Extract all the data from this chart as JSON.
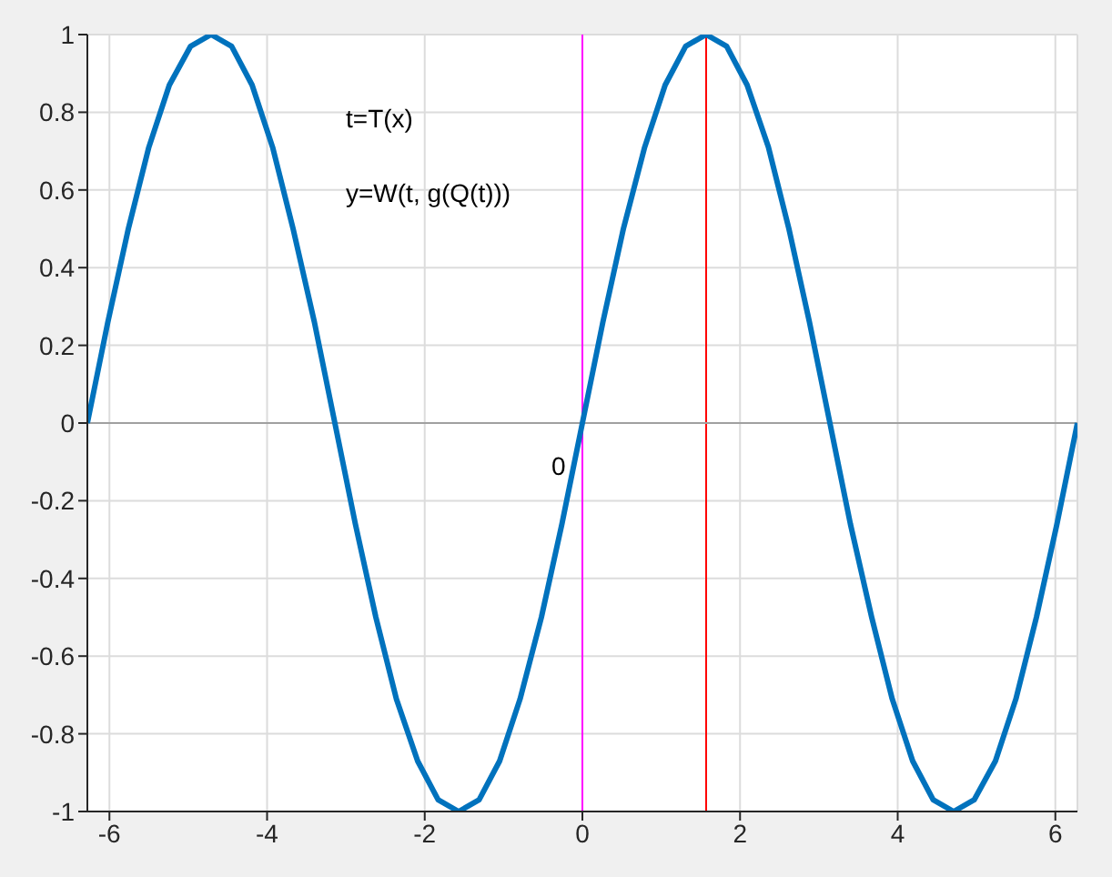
{
  "chart_data": {
    "type": "line",
    "x": [
      -6.28,
      -6.02,
      -5.76,
      -5.5,
      -5.24,
      -4.97,
      -4.71,
      -4.45,
      -4.19,
      -3.93,
      -3.67,
      -3.4,
      -3.14,
      -2.88,
      -2.62,
      -2.36,
      -2.09,
      -1.83,
      -1.57,
      -1.31,
      -1.05,
      -0.79,
      -0.52,
      -0.26,
      0,
      0.26,
      0.52,
      0.79,
      1.05,
      1.31,
      1.57,
      1.83,
      2.09,
      2.36,
      2.62,
      2.88,
      3.14,
      3.4,
      3.67,
      3.93,
      4.19,
      4.45,
      4.71,
      4.97,
      5.24,
      5.5,
      5.76,
      6.02,
      6.28
    ],
    "series": [
      {
        "color": "#0072bd",
        "values": [
          0,
          0.26,
          0.5,
          0.71,
          0.87,
          0.97,
          1,
          0.97,
          0.87,
          0.71,
          0.5,
          0.26,
          0,
          -0.26,
          -0.5,
          -0.71,
          -0.87,
          -0.97,
          -1,
          -0.97,
          -0.87,
          -0.71,
          -0.5,
          -0.26,
          0,
          0.26,
          0.5,
          0.71,
          0.87,
          0.97,
          1,
          0.97,
          0.87,
          0.71,
          0.5,
          0.26,
          0,
          -0.26,
          -0.5,
          -0.71,
          -0.87,
          -0.97,
          -1,
          -0.97,
          -0.87,
          -0.71,
          -0.5,
          -0.26,
          0
        ]
      }
    ],
    "xlim": [
      -6.28,
      6.28
    ],
    "xticks": [
      -6,
      -4,
      -2,
      0,
      2,
      4,
      6
    ],
    "ylim": [
      -1,
      1
    ],
    "yticks": [
      -1,
      -0.8,
      -0.6,
      -0.4,
      -0.2,
      0,
      0.2,
      0.4,
      0.6,
      0.8,
      1
    ],
    "grid": true,
    "marker": "none",
    "line_style": "solid",
    "ref_lines": [
      {
        "axis": "x",
        "value": 0,
        "color": "#ff00ff"
      },
      {
        "axis": "x",
        "value": 1.57,
        "color": "#ff0000"
      },
      {
        "axis": "y",
        "value": 0,
        "color": "#a0a0a0"
      }
    ],
    "annotations": [
      "t=T(x)",
      "y=W(t, g(Q(t)))",
      "0"
    ]
  }
}
